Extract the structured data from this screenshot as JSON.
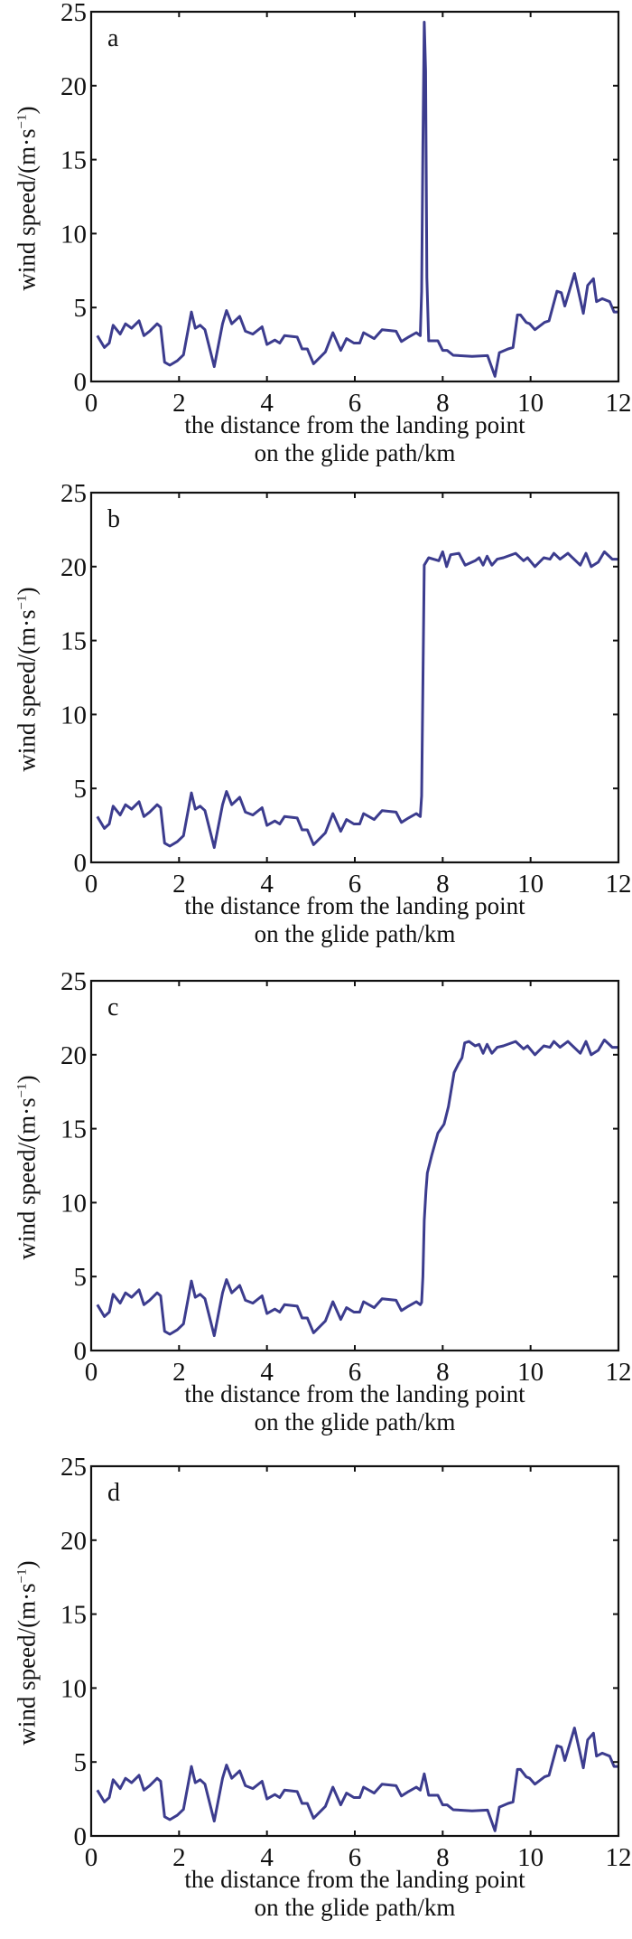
{
  "chart_data": [
    {
      "panel": "a",
      "type": "line",
      "title": "",
      "xlabel": "the distance from the landing point on the glide path/km",
      "ylabel": "wind speed/(m·s⁻¹)",
      "xlim": [
        0,
        12
      ],
      "ylim": [
        0,
        25
      ],
      "xticks": [
        0,
        2,
        4,
        6,
        8,
        10,
        12
      ],
      "yticks": [
        0,
        5,
        10,
        15,
        20,
        25
      ],
      "grid": false,
      "color": "#3c3c8e",
      "x": [
        0.14,
        0.3,
        0.41,
        0.5,
        0.66,
        0.78,
        0.92,
        1.09,
        1.2,
        1.33,
        1.5,
        1.58,
        1.67,
        1.79,
        1.96,
        2.1,
        2.28,
        2.37,
        2.48,
        2.59,
        2.8,
        2.99,
        3.08,
        3.2,
        3.38,
        3.51,
        3.68,
        3.89,
        4.0,
        4.18,
        4.29,
        4.4,
        4.69,
        4.8,
        4.92,
        5.06,
        5.33,
        5.5,
        5.68,
        5.81,
        5.98,
        6.11,
        6.2,
        6.44,
        6.62,
        6.94,
        7.06,
        7.22,
        7.4,
        7.49,
        7.52,
        7.55,
        7.58,
        7.61,
        7.64,
        7.68,
        7.89,
        8.0,
        8.1,
        8.24,
        8.67,
        9.02,
        9.19,
        9.29,
        9.49,
        9.6,
        9.7,
        9.77,
        9.9,
        9.98,
        10.1,
        10.32,
        10.42,
        10.6,
        10.7,
        10.78,
        11.0,
        11.2,
        11.3,
        11.43,
        11.5,
        11.63,
        11.8,
        11.9,
        12.0
      ],
      "values": [
        3.1,
        2.3,
        2.6,
        3.8,
        3.2,
        3.9,
        3.6,
        4.1,
        3.1,
        3.4,
        3.9,
        3.7,
        1.3,
        1.1,
        1.4,
        1.8,
        4.7,
        3.6,
        3.8,
        3.5,
        1.0,
        3.9,
        4.8,
        3.9,
        4.4,
        3.4,
        3.2,
        3.7,
        2.5,
        2.8,
        2.6,
        3.1,
        3.0,
        2.2,
        2.2,
        1.2,
        2.0,
        3.3,
        2.1,
        2.9,
        2.6,
        2.6,
        3.3,
        2.9,
        3.5,
        3.4,
        2.7,
        3.0,
        3.3,
        3.1,
        6.1,
        16.0,
        24.3,
        21.0,
        7.0,
        2.75,
        2.75,
        2.1,
        2.1,
        1.77,
        1.7,
        1.75,
        0.35,
        1.95,
        2.2,
        2.3,
        4.5,
        4.5,
        4.0,
        3.9,
        3.5,
        4.0,
        4.1,
        6.1,
        6.0,
        5.1,
        7.3,
        4.6,
        6.5,
        6.95,
        5.4,
        5.6,
        5.4,
        4.7,
        4.7
      ]
    },
    {
      "panel": "b",
      "type": "line",
      "title": "",
      "xlabel": "the distance from the landing point on the glide path/km",
      "ylabel": "wind speed/(m·s⁻¹)",
      "xlim": [
        0,
        12
      ],
      "ylim": [
        0,
        25
      ],
      "xticks": [
        0,
        2,
        4,
        6,
        8,
        10,
        12
      ],
      "yticks": [
        0,
        5,
        10,
        15,
        20,
        25
      ],
      "grid": false,
      "color": "#3c3c8e",
      "x": [
        0.14,
        0.3,
        0.41,
        0.5,
        0.66,
        0.78,
        0.92,
        1.09,
        1.2,
        1.33,
        1.5,
        1.58,
        1.67,
        1.79,
        1.96,
        2.1,
        2.28,
        2.37,
        2.48,
        2.59,
        2.8,
        2.99,
        3.08,
        3.2,
        3.38,
        3.51,
        3.68,
        3.89,
        4.0,
        4.18,
        4.29,
        4.4,
        4.69,
        4.8,
        4.92,
        5.06,
        5.33,
        5.5,
        5.68,
        5.81,
        5.98,
        6.11,
        6.2,
        6.44,
        6.62,
        6.94,
        7.06,
        7.22,
        7.4,
        7.49,
        7.52,
        7.55,
        7.58,
        7.68,
        7.91,
        8.0,
        8.09,
        8.18,
        8.37,
        8.51,
        8.74,
        8.83,
        8.92,
        9.01,
        9.12,
        9.24,
        9.38,
        9.66,
        9.84,
        9.93,
        10.1,
        10.3,
        10.44,
        10.53,
        10.67,
        10.85,
        11.13,
        11.26,
        11.38,
        11.54,
        11.68,
        11.86,
        12.0
      ],
      "values": [
        3.1,
        2.3,
        2.6,
        3.8,
        3.2,
        3.9,
        3.6,
        4.1,
        3.1,
        3.4,
        3.9,
        3.7,
        1.3,
        1.1,
        1.4,
        1.8,
        4.7,
        3.6,
        3.8,
        3.5,
        1.0,
        3.9,
        4.8,
        3.9,
        4.4,
        3.4,
        3.2,
        3.7,
        2.5,
        2.8,
        2.6,
        3.1,
        3.0,
        2.2,
        2.2,
        1.2,
        2.0,
        3.3,
        2.1,
        2.9,
        2.6,
        2.6,
        3.3,
        2.9,
        3.5,
        3.4,
        2.7,
        3.0,
        3.3,
        3.1,
        4.5,
        12.0,
        20.1,
        20.6,
        20.4,
        21.0,
        20.0,
        20.8,
        20.9,
        20.1,
        20.4,
        20.6,
        20.1,
        20.7,
        20.1,
        20.5,
        20.6,
        20.9,
        20.4,
        20.6,
        20.0,
        20.6,
        20.5,
        20.9,
        20.5,
        20.9,
        20.1,
        20.9,
        20.0,
        20.3,
        21.0,
        20.5,
        20.5
      ]
    },
    {
      "panel": "c",
      "type": "line",
      "title": "",
      "xlabel": "the distance from the landing point on the glide path/km",
      "ylabel": "wind speed/(m·s⁻¹)",
      "xlim": [
        0,
        12
      ],
      "ylim": [
        0,
        25
      ],
      "xticks": [
        0,
        2,
        4,
        6,
        8,
        10,
        12
      ],
      "yticks": [
        0,
        5,
        10,
        15,
        20,
        25
      ],
      "grid": false,
      "color": "#3c3c8e",
      "x": [
        0.14,
        0.3,
        0.41,
        0.5,
        0.66,
        0.78,
        0.92,
        1.09,
        1.2,
        1.33,
        1.5,
        1.58,
        1.67,
        1.79,
        1.96,
        2.1,
        2.28,
        2.37,
        2.48,
        2.59,
        2.8,
        2.99,
        3.08,
        3.2,
        3.38,
        3.51,
        3.68,
        3.89,
        4.0,
        4.18,
        4.29,
        4.4,
        4.69,
        4.8,
        4.92,
        5.06,
        5.33,
        5.5,
        5.68,
        5.81,
        5.98,
        6.11,
        6.2,
        6.44,
        6.62,
        6.94,
        7.06,
        7.22,
        7.4,
        7.49,
        7.52,
        7.55,
        7.58,
        7.62,
        7.65,
        7.75,
        7.89,
        8.03,
        8.13,
        8.26,
        8.36,
        8.44,
        8.5,
        8.6,
        8.74,
        8.83,
        8.92,
        9.01,
        9.12,
        9.24,
        9.38,
        9.66,
        9.84,
        9.93,
        10.1,
        10.3,
        10.44,
        10.53,
        10.67,
        10.85,
        11.13,
        11.26,
        11.38,
        11.54,
        11.68,
        11.86,
        12.0
      ],
      "values": [
        3.1,
        2.3,
        2.6,
        3.8,
        3.2,
        3.9,
        3.6,
        4.1,
        3.1,
        3.4,
        3.9,
        3.7,
        1.3,
        1.1,
        1.4,
        1.8,
        4.7,
        3.6,
        3.8,
        3.5,
        1.0,
        3.9,
        4.8,
        3.9,
        4.4,
        3.4,
        3.2,
        3.7,
        2.5,
        2.8,
        2.6,
        3.1,
        3.0,
        2.2,
        2.2,
        1.2,
        2.0,
        3.3,
        2.1,
        2.9,
        2.6,
        2.6,
        3.3,
        2.9,
        3.5,
        3.4,
        2.7,
        3.0,
        3.3,
        3.1,
        3.25,
        5.0,
        8.8,
        10.8,
        12.0,
        13.2,
        14.7,
        15.3,
        16.5,
        18.8,
        19.4,
        19.8,
        20.8,
        20.9,
        20.6,
        20.7,
        20.1,
        20.7,
        20.1,
        20.5,
        20.6,
        20.9,
        20.4,
        20.6,
        20.0,
        20.6,
        20.5,
        20.9,
        20.5,
        20.9,
        20.1,
        20.9,
        20.0,
        20.3,
        21.0,
        20.5,
        20.5
      ]
    },
    {
      "panel": "d",
      "type": "line",
      "title": "",
      "xlabel": "the distance from the landing point on the glide path/km",
      "ylabel": "wind speed/(m·s⁻¹)",
      "xlim": [
        0,
        12
      ],
      "ylim": [
        0,
        25
      ],
      "xticks": [
        0,
        2,
        4,
        6,
        8,
        10,
        12
      ],
      "yticks": [
        0,
        5,
        10,
        15,
        20,
        25
      ],
      "grid": false,
      "color": "#3c3c8e",
      "x": [
        0.14,
        0.3,
        0.41,
        0.5,
        0.66,
        0.78,
        0.92,
        1.09,
        1.2,
        1.33,
        1.5,
        1.58,
        1.67,
        1.79,
        1.96,
        2.1,
        2.28,
        2.37,
        2.48,
        2.59,
        2.8,
        2.99,
        3.08,
        3.2,
        3.38,
        3.51,
        3.68,
        3.89,
        4.0,
        4.18,
        4.29,
        4.4,
        4.69,
        4.8,
        4.92,
        5.06,
        5.33,
        5.5,
        5.68,
        5.81,
        5.98,
        6.11,
        6.2,
        6.44,
        6.62,
        6.94,
        7.06,
        7.22,
        7.4,
        7.49,
        7.58,
        7.68,
        7.89,
        8.0,
        8.1,
        8.24,
        8.67,
        9.02,
        9.19,
        9.29,
        9.49,
        9.6,
        9.7,
        9.77,
        9.9,
        9.98,
        10.1,
        10.32,
        10.42,
        10.6,
        10.7,
        10.78,
        11.0,
        11.2,
        11.3,
        11.43,
        11.5,
        11.63,
        11.8,
        11.9,
        12.0
      ],
      "values": [
        3.1,
        2.3,
        2.6,
        3.8,
        3.2,
        3.9,
        3.6,
        4.1,
        3.1,
        3.4,
        3.9,
        3.7,
        1.3,
        1.1,
        1.4,
        1.8,
        4.7,
        3.6,
        3.8,
        3.5,
        1.0,
        3.9,
        4.8,
        3.9,
        4.4,
        3.4,
        3.2,
        3.7,
        2.5,
        2.8,
        2.6,
        3.1,
        3.0,
        2.2,
        2.2,
        1.2,
        2.0,
        3.3,
        2.1,
        2.9,
        2.6,
        2.6,
        3.3,
        2.9,
        3.5,
        3.4,
        2.7,
        3.0,
        3.3,
        3.1,
        4.2,
        2.75,
        2.75,
        2.1,
        2.1,
        1.77,
        1.7,
        1.75,
        0.35,
        1.95,
        2.2,
        2.3,
        4.5,
        4.5,
        4.0,
        3.9,
        3.5,
        4.0,
        4.1,
        6.1,
        6.0,
        5.1,
        7.3,
        4.6,
        6.5,
        6.95,
        5.4,
        5.6,
        5.4,
        4.7,
        4.7
      ]
    }
  ],
  "panels": [
    {
      "letter": "a",
      "ylabel_main": "wind speed/(m·s",
      "ylabel_sup": "−1",
      "ylabel_end": ")",
      "xlabel_line1": "the distance from the landing point",
      "xlabel_line2": "on the glide path/km"
    },
    {
      "letter": "b",
      "ylabel_main": "wind speed/(m·s",
      "ylabel_sup": "−1",
      "ylabel_end": ")",
      "xlabel_line1": "the distance from the landing point",
      "xlabel_line2": "on the glide path/km"
    },
    {
      "letter": "c",
      "ylabel_main": "wind speed/(m·s",
      "ylabel_sup": "−1",
      "ylabel_end": ")",
      "xlabel_line1": "the distance from the landing point",
      "xlabel_line2": "on the glide path/km"
    },
    {
      "letter": "d",
      "ylabel_main": "wind speed/(m·s",
      "ylabel_sup": "−1",
      "ylabel_end": ")",
      "xlabel_line1": "the distance from the landing point",
      "xlabel_line2": "on the glide path/km"
    }
  ]
}
